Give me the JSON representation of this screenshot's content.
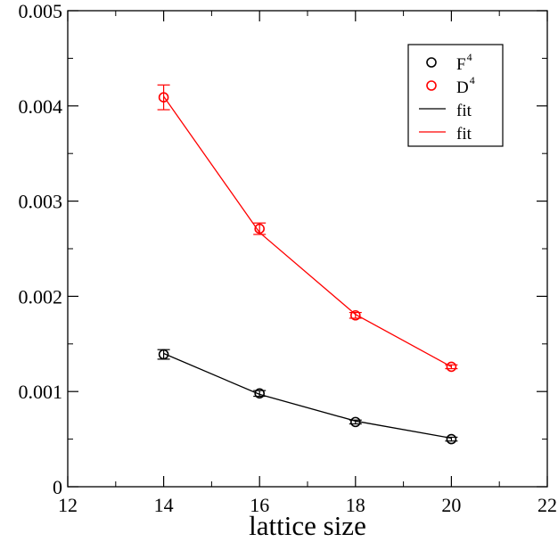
{
  "chart_data": {
    "type": "scatter",
    "xlabel": "lattice size",
    "ylabel": "",
    "xlim": [
      12,
      22
    ],
    "ylim": [
      0,
      0.005
    ],
    "xticks": [
      12,
      14,
      16,
      18,
      20,
      22
    ],
    "yticks": [
      0,
      0.001,
      0.002,
      0.003,
      0.004,
      0.005
    ],
    "xtick_labels": [
      "12",
      "14",
      "16",
      "18",
      "20",
      "22"
    ],
    "ytick_labels": [
      "0",
      "0.001",
      "0.002",
      "0.003",
      "0.004",
      "0.005"
    ],
    "grid": false,
    "legend_position": "top-right",
    "series": [
      {
        "name": "F",
        "name_sup": "4",
        "kind": "points",
        "color": "#000000",
        "marker": "circle",
        "x": [
          14,
          16,
          18,
          20
        ],
        "y": [
          0.00139,
          0.00098,
          0.00068,
          0.0005
        ],
        "err": [
          5e-05,
          3e-05,
          2e-05,
          2e-05
        ]
      },
      {
        "name": "D",
        "name_sup": "4",
        "kind": "points",
        "color": "#ff0000",
        "marker": "circle",
        "x": [
          14,
          16,
          18,
          20
        ],
        "y": [
          0.00409,
          0.00271,
          0.0018,
          0.00126
        ],
        "err": [
          0.00013,
          6e-05,
          3e-05,
          2e-05
        ]
      },
      {
        "name": "fit",
        "kind": "line",
        "color": "#000000",
        "x": [
          14,
          16,
          18,
          20
        ],
        "y": [
          0.0014,
          0.00097,
          0.00069,
          0.00051
        ]
      },
      {
        "name": "fit",
        "kind": "line",
        "color": "#ff0000",
        "x": [
          14,
          16,
          18,
          20
        ],
        "y": [
          0.0041,
          0.00267,
          0.00181,
          0.00126
        ]
      }
    ]
  }
}
